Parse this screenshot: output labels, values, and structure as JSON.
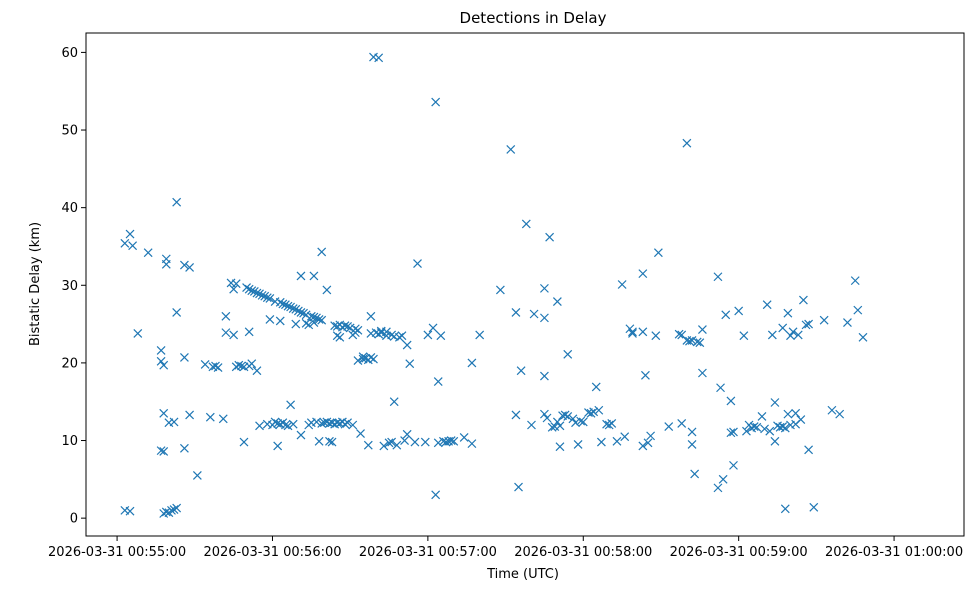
{
  "chart_data": {
    "type": "scatter",
    "title": "Detections in Delay",
    "xlabel": "Time (UTC)",
    "ylabel": "Bistatic Delay (km)",
    "x_ticks": [
      "00:55:00",
      "00:56:00",
      "00:57:00",
      "00:58:00",
      "00:59:00",
      "01:00:00"
    ],
    "x_tick_labels": [
      "2026-03-31 00:55:00",
      "2026-03-31 00:56:00",
      "2026-03-31 00:57:00",
      "2026-03-31 00:58:00",
      "2026-03-31 00:59:00",
      "2026-03-31 01:00:00"
    ],
    "y_ticks": [
      0,
      10,
      20,
      30,
      40,
      50,
      60
    ],
    "xlim": [
      "00:54:48",
      "01:00:27"
    ],
    "ylim": [
      -2.3,
      62.5
    ],
    "grid": false,
    "marker": "x",
    "color": "#1f77b4",
    "points": [
      {
        "t": "00:55:03",
        "y": 35.4
      },
      {
        "t": "00:55:05",
        "y": 36.6
      },
      {
        "t": "00:55:06",
        "y": 35.1
      },
      {
        "t": "00:55:08",
        "y": 23.8
      },
      {
        "t": "00:55:03",
        "y": 1.0
      },
      {
        "t": "00:55:05",
        "y": 0.9
      },
      {
        "t": "00:55:12",
        "y": 34.2
      },
      {
        "t": "00:55:17",
        "y": 21.6
      },
      {
        "t": "00:55:17",
        "y": 20.2
      },
      {
        "t": "00:55:18",
        "y": 19.7
      },
      {
        "t": "00:55:19",
        "y": 33.4
      },
      {
        "t": "00:55:19",
        "y": 32.7
      },
      {
        "t": "00:55:18",
        "y": 13.5
      },
      {
        "t": "00:55:20",
        "y": 12.3
      },
      {
        "t": "00:55:17",
        "y": 8.7
      },
      {
        "t": "00:55:18",
        "y": 8.6
      },
      {
        "t": "00:55:22",
        "y": 12.4
      },
      {
        "t": "00:55:23",
        "y": 40.7
      },
      {
        "t": "00:55:23",
        "y": 26.5
      },
      {
        "t": "00:55:26",
        "y": 32.6
      },
      {
        "t": "00:55:28",
        "y": 32.3
      },
      {
        "t": "00:55:26",
        "y": 20.7
      },
      {
        "t": "00:55:26",
        "y": 9.0
      },
      {
        "t": "00:55:28",
        "y": 13.3
      },
      {
        "t": "00:55:31",
        "y": 5.5
      },
      {
        "t": "00:55:18",
        "y": 0.6
      },
      {
        "t": "00:55:19",
        "y": 0.8
      },
      {
        "t": "00:55:20",
        "y": 0.7
      },
      {
        "t": "00:55:21",
        "y": 1.0
      },
      {
        "t": "00:55:22",
        "y": 1.1
      },
      {
        "t": "00:55:23",
        "y": 1.3
      },
      {
        "t": "00:55:34",
        "y": 19.8
      },
      {
        "t": "00:55:36",
        "y": 13.0
      },
      {
        "t": "00:55:37",
        "y": 19.5
      },
      {
        "t": "00:55:38",
        "y": 19.6
      },
      {
        "t": "00:55:39",
        "y": 19.4
      },
      {
        "t": "00:55:41",
        "y": 12.8
      },
      {
        "t": "00:55:42",
        "y": 23.9
      },
      {
        "t": "00:55:42",
        "y": 26.0
      },
      {
        "t": "00:55:44",
        "y": 30.3
      },
      {
        "t": "00:55:45",
        "y": 29.5
      },
      {
        "t": "00:55:46",
        "y": 30.2
      },
      {
        "t": "00:55:45",
        "y": 23.6
      },
      {
        "t": "00:55:46",
        "y": 19.5
      },
      {
        "t": "00:55:47",
        "y": 19.7
      },
      {
        "t": "00:55:48",
        "y": 19.6
      },
      {
        "t": "00:55:49",
        "y": 19.5
      },
      {
        "t": "00:55:49",
        "y": 9.8
      },
      {
        "t": "00:55:50",
        "y": 29.7
      },
      {
        "t": "00:55:51",
        "y": 29.5
      },
      {
        "t": "00:55:51",
        "y": 24.0
      },
      {
        "t": "00:55:51",
        "y": 19.6
      },
      {
        "t": "00:55:52",
        "y": 29.3
      },
      {
        "t": "00:55:52",
        "y": 19.9
      },
      {
        "t": "00:55:53",
        "y": 29.2
      },
      {
        "t": "00:55:54",
        "y": 29.0
      },
      {
        "t": "00:55:54",
        "y": 19.0
      },
      {
        "t": "00:55:55",
        "y": 28.9
      },
      {
        "t": "00:55:55",
        "y": 11.9
      },
      {
        "t": "00:55:56",
        "y": 28.7
      },
      {
        "t": "00:55:57",
        "y": 28.6
      },
      {
        "t": "00:55:58",
        "y": 28.4
      },
      {
        "t": "00:55:58",
        "y": 12.1
      },
      {
        "t": "00:55:59",
        "y": 25.6
      },
      {
        "t": "00:55:59",
        "y": 28.3
      },
      {
        "t": "00:56:00",
        "y": 12.0
      },
      {
        "t": "00:56:01",
        "y": 27.9
      },
      {
        "t": "00:56:01",
        "y": 12.4
      },
      {
        "t": "00:56:02",
        "y": 12.2
      },
      {
        "t": "00:56:02",
        "y": 9.3
      },
      {
        "t": "00:56:03",
        "y": 27.8
      },
      {
        "t": "00:56:03",
        "y": 25.4
      },
      {
        "t": "00:56:03",
        "y": 12.1
      },
      {
        "t": "00:56:04",
        "y": 27.6
      },
      {
        "t": "00:56:04",
        "y": 12.3
      },
      {
        "t": "00:56:05",
        "y": 27.5
      },
      {
        "t": "00:56:05",
        "y": 12.0
      },
      {
        "t": "00:56:06",
        "y": 27.3
      },
      {
        "t": "00:56:06",
        "y": 11.9
      },
      {
        "t": "00:56:07",
        "y": 27.2
      },
      {
        "t": "00:56:07",
        "y": 14.6
      },
      {
        "t": "00:56:08",
        "y": 27.0
      },
      {
        "t": "00:56:08",
        "y": 12.1
      },
      {
        "t": "00:56:09",
        "y": 26.9
      },
      {
        "t": "00:56:09",
        "y": 25.0
      },
      {
        "t": "00:56:10",
        "y": 26.7
      },
      {
        "t": "00:56:11",
        "y": 26.5
      },
      {
        "t": "00:56:11",
        "y": 10.7
      },
      {
        "t": "00:56:11",
        "y": 31.2
      },
      {
        "t": "00:56:12",
        "y": 26.4
      },
      {
        "t": "00:56:13",
        "y": 26.2
      },
      {
        "t": "00:56:13",
        "y": 25.1
      },
      {
        "t": "00:56:14",
        "y": 24.9
      },
      {
        "t": "00:56:14",
        "y": 12.0
      },
      {
        "t": "00:56:15",
        "y": 26.0
      },
      {
        "t": "00:56:15",
        "y": 12.3
      },
      {
        "t": "00:56:16",
        "y": 31.2
      },
      {
        "t": "00:56:16",
        "y": 25.9
      },
      {
        "t": "00:56:16",
        "y": 25.2
      },
      {
        "t": "00:56:17",
        "y": 25.8
      },
      {
        "t": "00:56:17",
        "y": 12.4
      },
      {
        "t": "00:56:18",
        "y": 25.6
      },
      {
        "t": "00:56:18",
        "y": 9.9
      },
      {
        "t": "00:56:19",
        "y": 34.3
      },
      {
        "t": "00:56:19",
        "y": 25.5
      },
      {
        "t": "00:56:19",
        "y": 12.2
      },
      {
        "t": "00:56:20",
        "y": 12.3
      },
      {
        "t": "00:56:21",
        "y": 29.4
      },
      {
        "t": "00:56:21",
        "y": 12.4
      },
      {
        "t": "00:56:22",
        "y": 12.2
      },
      {
        "t": "00:56:22",
        "y": 9.9
      },
      {
        "t": "00:56:23",
        "y": 12.3
      },
      {
        "t": "00:56:23",
        "y": 9.8
      },
      {
        "t": "00:56:24",
        "y": 24.8
      },
      {
        "t": "00:56:24",
        "y": 12.1
      },
      {
        "t": "00:56:25",
        "y": 24.7
      },
      {
        "t": "00:56:25",
        "y": 23.5
      },
      {
        "t": "00:56:25",
        "y": 12.3
      },
      {
        "t": "00:56:26",
        "y": 24.9
      },
      {
        "t": "00:56:26",
        "y": 23.3
      },
      {
        "t": "00:56:26",
        "y": 12.2
      },
      {
        "t": "00:56:27",
        "y": 24.6
      },
      {
        "t": "00:56:27",
        "y": 12.4
      },
      {
        "t": "00:56:28",
        "y": 24.8
      },
      {
        "t": "00:56:28",
        "y": 12.1
      },
      {
        "t": "00:56:29",
        "y": 24.7
      },
      {
        "t": "00:56:29",
        "y": 12.3
      },
      {
        "t": "00:56:30",
        "y": 24.5
      },
      {
        "t": "00:56:31",
        "y": 23.6
      },
      {
        "t": "00:56:31",
        "y": 12.0
      },
      {
        "t": "00:56:32",
        "y": 24.4
      },
      {
        "t": "00:56:32",
        "y": 23.9
      },
      {
        "t": "00:56:33",
        "y": 20.3
      },
      {
        "t": "00:56:33",
        "y": 24.2
      },
      {
        "t": "00:56:34",
        "y": 10.9
      },
      {
        "t": "00:56:35",
        "y": 20.5
      },
      {
        "t": "00:56:35",
        "y": 20.8
      },
      {
        "t": "00:56:36",
        "y": 20.6
      },
      {
        "t": "00:56:37",
        "y": 9.4
      },
      {
        "t": "00:56:37",
        "y": 20.4
      },
      {
        "t": "00:56:38",
        "y": 20.7
      },
      {
        "t": "00:56:38",
        "y": 23.8
      },
      {
        "t": "00:56:38",
        "y": 26.0
      },
      {
        "t": "00:56:39",
        "y": 59.4
      },
      {
        "t": "00:56:39",
        "y": 20.5
      },
      {
        "t": "00:56:40",
        "y": 23.9
      },
      {
        "t": "00:56:41",
        "y": 59.3
      },
      {
        "t": "00:56:41",
        "y": 23.7
      },
      {
        "t": "00:56:42",
        "y": 24.1
      },
      {
        "t": "00:56:42",
        "y": 23.9
      },
      {
        "t": "00:56:43",
        "y": 9.3
      },
      {
        "t": "00:56:44",
        "y": 24.0
      },
      {
        "t": "00:56:44",
        "y": 23.5
      },
      {
        "t": "00:56:45",
        "y": 9.7
      },
      {
        "t": "00:56:46",
        "y": 23.6
      },
      {
        "t": "00:56:46",
        "y": 9.8
      },
      {
        "t": "00:56:47",
        "y": 15.0
      },
      {
        "t": "00:56:47",
        "y": 23.4
      },
      {
        "t": "00:56:48",
        "y": 9.4
      },
      {
        "t": "00:56:49",
        "y": 23.3
      },
      {
        "t": "00:56:50",
        "y": 23.5
      },
      {
        "t": "00:56:51",
        "y": 10.0
      },
      {
        "t": "00:56:52",
        "y": 22.3
      },
      {
        "t": "00:56:52",
        "y": 10.8
      },
      {
        "t": "00:56:53",
        "y": 19.9
      },
      {
        "t": "00:56:55",
        "y": 9.8
      },
      {
        "t": "00:56:56",
        "y": 32.8
      },
      {
        "t": "00:56:59",
        "y": 9.8
      },
      {
        "t": "00:57:00",
        "y": 23.6
      },
      {
        "t": "00:57:02",
        "y": 24.5
      },
      {
        "t": "00:57:03",
        "y": 53.6
      },
      {
        "t": "00:57:03",
        "y": 3.0
      },
      {
        "t": "00:57:04",
        "y": 17.6
      },
      {
        "t": "00:57:04",
        "y": 9.7
      },
      {
        "t": "00:57:05",
        "y": 23.5
      },
      {
        "t": "00:57:06",
        "y": 9.9
      },
      {
        "t": "00:57:07",
        "y": 9.8
      },
      {
        "t": "00:57:08",
        "y": 9.9
      },
      {
        "t": "00:57:09",
        "y": 10.0
      },
      {
        "t": "00:57:10",
        "y": 9.9
      },
      {
        "t": "00:57:14",
        "y": 10.4
      },
      {
        "t": "00:57:17",
        "y": 9.6
      },
      {
        "t": "00:57:17",
        "y": 20.0
      },
      {
        "t": "00:57:20",
        "y": 23.6
      },
      {
        "t": "00:57:28",
        "y": 29.4
      },
      {
        "t": "00:57:32",
        "y": 47.5
      },
      {
        "t": "00:57:34",
        "y": 26.5
      },
      {
        "t": "00:57:34",
        "y": 13.3
      },
      {
        "t": "00:57:35",
        "y": 4.0
      },
      {
        "t": "00:57:36",
        "y": 19.0
      },
      {
        "t": "00:57:38",
        "y": 37.9
      },
      {
        "t": "00:57:40",
        "y": 12.0
      },
      {
        "t": "00:57:41",
        "y": 26.3
      },
      {
        "t": "00:57:45",
        "y": 29.6
      },
      {
        "t": "00:57:45",
        "y": 25.8
      },
      {
        "t": "00:57:45",
        "y": 18.3
      },
      {
        "t": "00:57:45",
        "y": 13.4
      },
      {
        "t": "00:57:46",
        "y": 12.9
      },
      {
        "t": "00:57:47",
        "y": 36.2
      },
      {
        "t": "00:57:48",
        "y": 11.7
      },
      {
        "t": "00:57:49",
        "y": 11.8
      },
      {
        "t": "00:57:50",
        "y": 27.9
      },
      {
        "t": "00:57:50",
        "y": 12.4
      },
      {
        "t": "00:57:51",
        "y": 9.2
      },
      {
        "t": "00:57:51",
        "y": 11.9
      },
      {
        "t": "00:57:52",
        "y": 13.2
      },
      {
        "t": "00:57:53",
        "y": 13.3
      },
      {
        "t": "00:57:54",
        "y": 21.1
      },
      {
        "t": "00:57:54",
        "y": 13.1
      },
      {
        "t": "00:57:56",
        "y": 12.8
      },
      {
        "t": "00:57:57",
        "y": 12.3
      },
      {
        "t": "00:57:58",
        "y": 9.5
      },
      {
        "t": "00:57:59",
        "y": 12.5
      },
      {
        "t": "00:58:00",
        "y": 12.4
      },
      {
        "t": "00:58:02",
        "y": 13.6
      },
      {
        "t": "00:58:03",
        "y": 13.5
      },
      {
        "t": "00:58:04",
        "y": 13.7
      },
      {
        "t": "00:58:05",
        "y": 16.9
      },
      {
        "t": "00:58:06",
        "y": 13.9
      },
      {
        "t": "00:58:07",
        "y": 9.8
      },
      {
        "t": "00:58:09",
        "y": 12.1
      },
      {
        "t": "00:58:10",
        "y": 12.0
      },
      {
        "t": "00:58:11",
        "y": 12.2
      },
      {
        "t": "00:58:13",
        "y": 9.9
      },
      {
        "t": "00:58:15",
        "y": 30.1
      },
      {
        "t": "00:58:16",
        "y": 10.5
      },
      {
        "t": "00:58:18",
        "y": 24.4
      },
      {
        "t": "00:58:19",
        "y": 23.8
      },
      {
        "t": "00:58:19",
        "y": 24.0
      },
      {
        "t": "00:58:23",
        "y": 24.0
      },
      {
        "t": "00:58:23",
        "y": 31.5
      },
      {
        "t": "00:58:23",
        "y": 9.3
      },
      {
        "t": "00:58:24",
        "y": 18.4
      },
      {
        "t": "00:58:25",
        "y": 9.7
      },
      {
        "t": "00:58:26",
        "y": 10.6
      },
      {
        "t": "00:58:28",
        "y": 23.5
      },
      {
        "t": "00:58:29",
        "y": 34.2
      },
      {
        "t": "00:58:33",
        "y": 11.8
      },
      {
        "t": "00:58:37",
        "y": 23.7
      },
      {
        "t": "00:58:38",
        "y": 23.6
      },
      {
        "t": "00:58:38",
        "y": 12.2
      },
      {
        "t": "00:58:40",
        "y": 22.9
      },
      {
        "t": "00:58:40",
        "y": 48.3
      },
      {
        "t": "00:58:41",
        "y": 22.8
      },
      {
        "t": "00:58:42",
        "y": 22.9
      },
      {
        "t": "00:58:42",
        "y": 11.1
      },
      {
        "t": "00:58:42",
        "y": 9.5
      },
      {
        "t": "00:58:43",
        "y": 5.7
      },
      {
        "t": "00:58:44",
        "y": 22.7
      },
      {
        "t": "00:58:45",
        "y": 22.6
      },
      {
        "t": "00:58:46",
        "y": 24.3
      },
      {
        "t": "00:58:46",
        "y": 18.7
      },
      {
        "t": "00:58:52",
        "y": 3.9
      },
      {
        "t": "00:58:52",
        "y": 31.1
      },
      {
        "t": "00:58:53",
        "y": 16.8
      },
      {
        "t": "00:58:54",
        "y": 5.0
      },
      {
        "t": "00:58:55",
        "y": 26.2
      },
      {
        "t": "00:58:57",
        "y": 15.1
      },
      {
        "t": "00:58:57",
        "y": 11.0
      },
      {
        "t": "00:58:58",
        "y": 6.8
      },
      {
        "t": "00:58:58",
        "y": 11.1
      },
      {
        "t": "00:59:00",
        "y": 26.7
      },
      {
        "t": "00:59:02",
        "y": 23.5
      },
      {
        "t": "00:59:03",
        "y": 11.2
      },
      {
        "t": "00:59:04",
        "y": 12.0
      },
      {
        "t": "00:59:05",
        "y": 11.6
      },
      {
        "t": "00:59:06",
        "y": 11.8
      },
      {
        "t": "00:59:07",
        "y": 11.7
      },
      {
        "t": "00:59:09",
        "y": 13.1
      },
      {
        "t": "00:59:10",
        "y": 11.5
      },
      {
        "t": "00:59:11",
        "y": 27.5
      },
      {
        "t": "00:59:12",
        "y": 11.2
      },
      {
        "t": "00:59:13",
        "y": 23.6
      },
      {
        "t": "00:59:14",
        "y": 14.9
      },
      {
        "t": "00:59:14",
        "y": 9.9
      },
      {
        "t": "00:59:15",
        "y": 11.9
      },
      {
        "t": "00:59:16",
        "y": 11.7
      },
      {
        "t": "00:59:17",
        "y": 24.5
      },
      {
        "t": "00:59:17",
        "y": 11.8
      },
      {
        "t": "00:59:18",
        "y": 11.6
      },
      {
        "t": "00:59:18",
        "y": 1.2
      },
      {
        "t": "00:59:19",
        "y": 26.4
      },
      {
        "t": "00:59:19",
        "y": 13.4
      },
      {
        "t": "00:59:20",
        "y": 12.0
      },
      {
        "t": "00:59:20",
        "y": 23.5
      },
      {
        "t": "00:59:21",
        "y": 24.0
      },
      {
        "t": "00:59:22",
        "y": 13.5
      },
      {
        "t": "00:59:22",
        "y": 12.1
      },
      {
        "t": "00:59:23",
        "y": 23.6
      },
      {
        "t": "00:59:24",
        "y": 12.7
      },
      {
        "t": "00:59:25",
        "y": 28.1
      },
      {
        "t": "00:59:26",
        "y": 24.9
      },
      {
        "t": "00:59:27",
        "y": 8.8
      },
      {
        "t": "00:59:27",
        "y": 25.0
      },
      {
        "t": "00:59:29",
        "y": 1.4
      },
      {
        "t": "00:59:33",
        "y": 25.5
      },
      {
        "t": "00:59:36",
        "y": 13.9
      },
      {
        "t": "00:59:39",
        "y": 13.4
      },
      {
        "t": "00:59:42",
        "y": 25.2
      },
      {
        "t": "00:59:45",
        "y": 30.6
      },
      {
        "t": "00:59:46",
        "y": 26.8
      },
      {
        "t": "00:59:48",
        "y": 23.3
      }
    ]
  }
}
